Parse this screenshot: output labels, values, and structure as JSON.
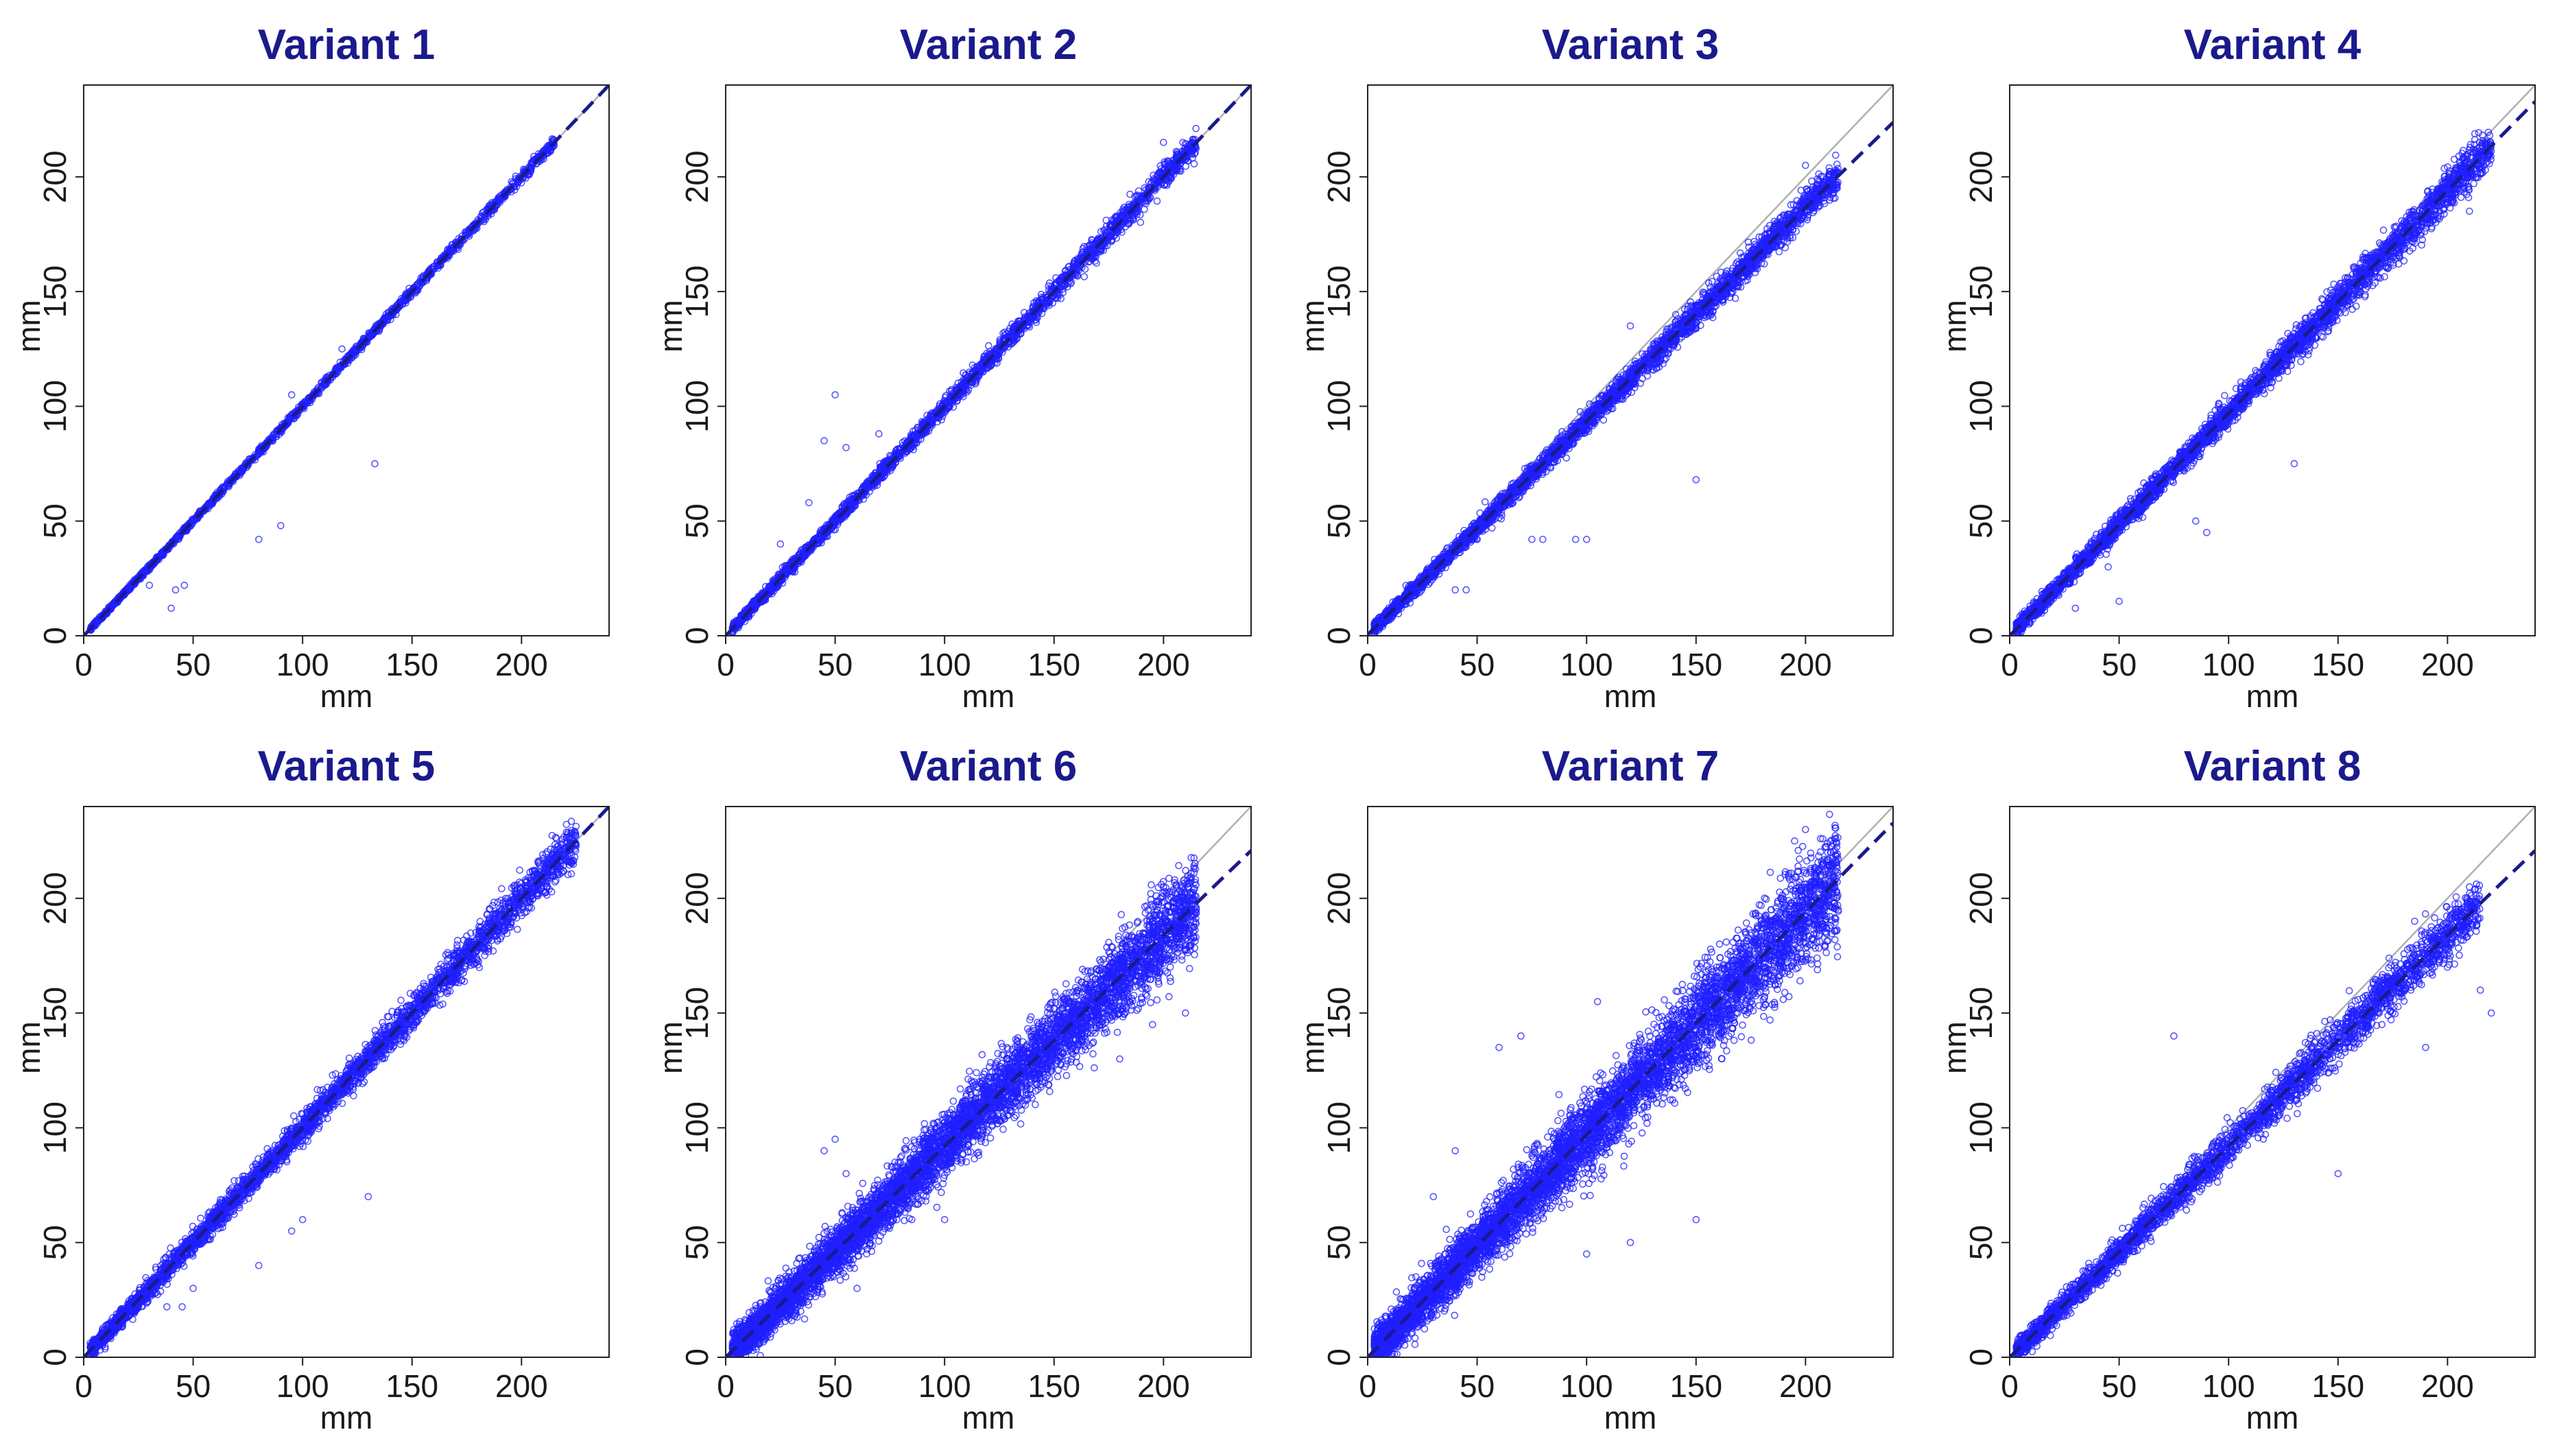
{
  "colors": {
    "title": "#1a1a8c",
    "points": "#1f1fff",
    "fit_line": "#1a1a8c",
    "identity_line": "#b0b0b0",
    "axis": "#222222"
  },
  "chart_data": [
    {
      "type": "scatter",
      "title": "Variant  1",
      "xlabel": "mm",
      "ylabel": "mm",
      "xlim": [
        0,
        240
      ],
      "ylim": [
        0,
        240
      ],
      "xticks": [
        0,
        50,
        100,
        150,
        200
      ],
      "yticks": [
        0,
        50,
        100,
        150,
        200
      ],
      "grid": false,
      "legend": "none",
      "identity_line": true,
      "fit_line": {
        "slope": 1.0,
        "intercept": 0.0
      },
      "points_summary": {
        "n": 1500,
        "x_range": [
          3,
          215
        ],
        "spread_sd": 1.2
      },
      "outliers": [
        [
          133,
          75
        ],
        [
          80,
          42
        ],
        [
          90,
          48
        ],
        [
          42,
          20
        ],
        [
          46,
          22
        ],
        [
          30,
          22
        ],
        [
          118,
          125
        ],
        [
          95,
          105
        ],
        [
          40,
          12
        ]
      ]
    },
    {
      "type": "scatter",
      "title": "Variant  2",
      "xlabel": "mm",
      "ylabel": "mm",
      "xlim": [
        0,
        240
      ],
      "ylim": [
        0,
        240
      ],
      "xticks": [
        0,
        50,
        100,
        150,
        200
      ],
      "yticks": [
        0,
        50,
        100,
        150,
        200
      ],
      "grid": false,
      "legend": "none",
      "identity_line": true,
      "fit_line": {
        "slope": 1.0,
        "intercept": 0.0
      },
      "points_summary": {
        "n": 2500,
        "x_range": [
          3,
          215
        ],
        "spread_sd": 2.8
      },
      "outliers": [
        [
          50,
          105
        ],
        [
          45,
          85
        ],
        [
          55,
          82
        ],
        [
          25,
          40
        ],
        [
          30,
          32
        ],
        [
          70,
          88
        ],
        [
          38,
          58
        ],
        [
          200,
          215
        ]
      ]
    },
    {
      "type": "scatter",
      "title": "Variant  3",
      "xlabel": "mm",
      "ylabel": "mm",
      "xlim": [
        0,
        240
      ],
      "ylim": [
        0,
        240
      ],
      "xticks": [
        0,
        50,
        100,
        150,
        200
      ],
      "yticks": [
        0,
        50,
        100,
        150,
        200
      ],
      "grid": false,
      "legend": "none",
      "identity_line": true,
      "fit_line": {
        "slope": 0.93,
        "intercept": 0.5
      },
      "points_summary": {
        "n": 3500,
        "x_range": [
          3,
          215
        ],
        "spread_sd": 3.5
      },
      "outliers": [
        [
          75,
          42
        ],
        [
          80,
          42
        ],
        [
          95,
          42
        ],
        [
          100,
          42
        ],
        [
          150,
          68
        ],
        [
          45,
          20
        ],
        [
          40,
          20
        ],
        [
          120,
          135
        ],
        [
          200,
          205
        ],
        [
          210,
          195
        ]
      ]
    },
    {
      "type": "scatter",
      "title": "Variant  4",
      "xlabel": "mm",
      "ylabel": "mm",
      "xlim": [
        0,
        240
      ],
      "ylim": [
        0,
        240
      ],
      "xticks": [
        0,
        50,
        100,
        150,
        200
      ],
      "yticks": [
        0,
        50,
        100,
        150,
        200
      ],
      "grid": false,
      "legend": "none",
      "identity_line": true,
      "fit_line": {
        "slope": 0.97,
        "intercept": 0.0
      },
      "points_summary": {
        "n": 3500,
        "x_range": [
          3,
          220
        ],
        "spread_sd": 4.5
      },
      "outliers": [
        [
          130,
          75
        ],
        [
          85,
          50
        ],
        [
          90,
          45
        ],
        [
          45,
          30
        ],
        [
          50,
          15
        ],
        [
          210,
          185
        ],
        [
          60,
          60
        ],
        [
          30,
          12
        ]
      ]
    },
    {
      "type": "scatter",
      "title": "Variant  5",
      "xlabel": "mm",
      "ylabel": "mm",
      "xlim": [
        0,
        240
      ],
      "ylim": [
        0,
        240
      ],
      "xticks": [
        0,
        50,
        100,
        150,
        200
      ],
      "yticks": [
        0,
        50,
        100,
        150,
        200
      ],
      "grid": false,
      "legend": "none",
      "identity_line": true,
      "fit_line": {
        "slope": 1.0,
        "intercept": 0.0
      },
      "points_summary": {
        "n": 3500,
        "x_range": [
          3,
          225
        ],
        "spread_sd": 4.8
      },
      "outliers": [
        [
          130,
          70
        ],
        [
          100,
          60
        ],
        [
          95,
          55
        ],
        [
          45,
          22
        ],
        [
          38,
          22
        ],
        [
          80,
          40
        ],
        [
          50,
          30
        ],
        [
          220,
          222
        ]
      ]
    },
    {
      "type": "scatter",
      "title": "Variant  6",
      "xlabel": "mm",
      "ylabel": "mm",
      "xlim": [
        0,
        240
      ],
      "ylim": [
        0,
        240
      ],
      "xticks": [
        0,
        50,
        100,
        150,
        200
      ],
      "yticks": [
        0,
        50,
        100,
        150,
        200
      ],
      "grid": false,
      "legend": "none",
      "identity_line": true,
      "fit_line": {
        "slope": 0.92,
        "intercept": 0.0
      },
      "points_summary": {
        "n": 6000,
        "x_range": [
          3,
          215
        ],
        "spread_sd": 10
      },
      "outliers": [
        [
          50,
          95
        ],
        [
          45,
          90
        ],
        [
          55,
          80
        ],
        [
          200,
          205
        ],
        [
          195,
          145
        ],
        [
          210,
          150
        ],
        [
          180,
          130
        ],
        [
          100,
          60
        ],
        [
          60,
          30
        ],
        [
          30,
          20
        ]
      ]
    },
    {
      "type": "scatter",
      "title": "Variant  7",
      "xlabel": "mm",
      "ylabel": "mm",
      "xlim": [
        0,
        240
      ],
      "ylim": [
        0,
        240
      ],
      "xticks": [
        0,
        50,
        100,
        150,
        200
      ],
      "yticks": [
        0,
        50,
        100,
        150,
        200
      ],
      "grid": false,
      "legend": "none",
      "identity_line": true,
      "fit_line": {
        "slope": 0.97,
        "intercept": 0.0
      },
      "points_summary": {
        "n": 6000,
        "x_range": [
          3,
          215
        ],
        "spread_sd": 12
      },
      "outliers": [
        [
          70,
          140
        ],
        [
          60,
          135
        ],
        [
          40,
          90
        ],
        [
          30,
          70
        ],
        [
          195,
          225
        ],
        [
          200,
          230
        ],
        [
          105,
          155
        ],
        [
          150,
          60
        ],
        [
          100,
          45
        ],
        [
          120,
          50
        ]
      ]
    },
    {
      "type": "scatter",
      "title": "Variant  8",
      "xlabel": "mm",
      "ylabel": "mm",
      "xlim": [
        0,
        240
      ],
      "ylim": [
        0,
        240
      ],
      "xticks": [
        0,
        50,
        100,
        150,
        200
      ],
      "yticks": [
        0,
        50,
        100,
        150,
        200
      ],
      "grid": false,
      "legend": "none",
      "identity_line": true,
      "fit_line": {
        "slope": 0.92,
        "intercept": 0.0
      },
      "points_summary": {
        "n": 3000,
        "x_range": [
          3,
          215
        ],
        "spread_sd": 6
      },
      "outliers": [
        [
          75,
          140
        ],
        [
          185,
          190
        ],
        [
          210,
          205
        ],
        [
          200,
          170
        ],
        [
          215,
          160
        ],
        [
          220,
          150
        ],
        [
          175,
          150
        ],
        [
          190,
          135
        ],
        [
          150,
          80
        ],
        [
          170,
          145
        ]
      ]
    }
  ]
}
